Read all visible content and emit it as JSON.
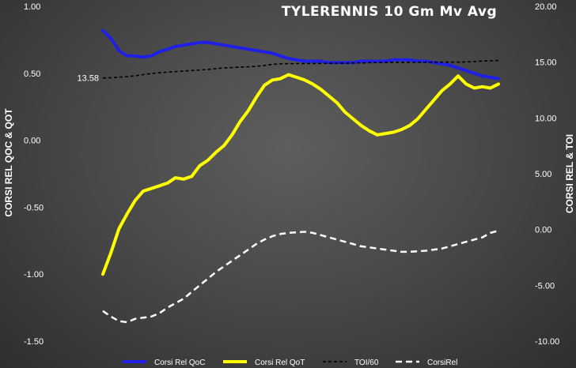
{
  "chart_data": {
    "type": "line",
    "title": "TYLERENNIS 10 Gm Mv Avg",
    "ylabel": "CORSI REL QOC & QOT",
    "y2label": "CORSI REL & TOI",
    "ylim": [
      -1.5,
      1.0
    ],
    "y2lim": [
      -10,
      20
    ],
    "yticks": [
      "1.00",
      "0.50",
      "0.00",
      "-0.50",
      "-1.00",
      "-1.50"
    ],
    "y2ticks": [
      "20.00",
      "15.00",
      "10.00",
      "5.00",
      "0.00",
      "-5.00",
      "-10.00"
    ],
    "grid": false,
    "legend_position": "bottom",
    "x": [
      1,
      2,
      3,
      4,
      5,
      6,
      7,
      8,
      9,
      10,
      11,
      12,
      13,
      14,
      15,
      16,
      17,
      18,
      19,
      20,
      21,
      22,
      23,
      24,
      25,
      26,
      27,
      28,
      29,
      30,
      31,
      32,
      33,
      34,
      35,
      36,
      37,
      38,
      39,
      40,
      41,
      42,
      43,
      44,
      45,
      46,
      47,
      48,
      49,
      50
    ],
    "series": [
      {
        "name": "Corsi Rel QoC",
        "axis": "left",
        "color": "#1f1fe6",
        "dash": "solid",
        "values": [
          0.82,
          0.76,
          0.67,
          0.63,
          0.63,
          0.62,
          0.63,
          0.66,
          0.68,
          0.7,
          0.71,
          0.72,
          0.73,
          0.73,
          0.72,
          0.71,
          0.7,
          0.69,
          0.68,
          0.67,
          0.66,
          0.65,
          0.63,
          0.61,
          0.6,
          0.59,
          0.59,
          0.59,
          0.58,
          0.58,
          0.58,
          0.58,
          0.59,
          0.59,
          0.59,
          0.59,
          0.6,
          0.6,
          0.6,
          0.59,
          0.59,
          0.58,
          0.57,
          0.56,
          0.54,
          0.52,
          0.5,
          0.48,
          0.47,
          0.46
        ]
      },
      {
        "name": "Corsi Rel QoT",
        "axis": "left",
        "color": "#ffff00",
        "dash": "solid",
        "values": [
          -1.0,
          -0.84,
          -0.66,
          -0.55,
          -0.45,
          -0.38,
          -0.36,
          -0.34,
          -0.32,
          -0.28,
          -0.29,
          -0.27,
          -0.19,
          -0.15,
          -0.09,
          -0.04,
          0.04,
          0.14,
          0.22,
          0.32,
          0.41,
          0.45,
          0.46,
          0.49,
          0.47,
          0.45,
          0.42,
          0.38,
          0.33,
          0.28,
          0.21,
          0.16,
          0.11,
          0.07,
          0.04,
          0.05,
          0.06,
          0.08,
          0.11,
          0.16,
          0.23,
          0.3,
          0.37,
          0.42,
          0.48,
          0.42,
          0.39,
          0.4,
          0.39,
          0.42
        ]
      },
      {
        "name": "TOI/60",
        "axis": "right",
        "color": "#000000",
        "dash": "short",
        "values": [
          13.58,
          13.6,
          13.65,
          13.7,
          13.78,
          13.88,
          13.98,
          14.05,
          14.1,
          14.15,
          14.2,
          14.25,
          14.3,
          14.35,
          14.42,
          14.48,
          14.52,
          14.55,
          14.58,
          14.62,
          14.7,
          14.8,
          14.85,
          14.86,
          14.87,
          14.88,
          14.88,
          14.88,
          14.89,
          14.9,
          14.9,
          14.92,
          14.93,
          14.95,
          14.96,
          14.97,
          14.98,
          14.98,
          14.98,
          14.99,
          14.99,
          15.0,
          15.0,
          15.0,
          15.0,
          15.02,
          15.05,
          15.1,
          15.12,
          15.15
        ]
      },
      {
        "name": "CorsiRel",
        "axis": "right",
        "color": "#ffffff",
        "dash": "long",
        "values": [
          -7.3,
          -7.8,
          -8.2,
          -8.3,
          -8.0,
          -7.9,
          -7.8,
          -7.5,
          -7.0,
          -6.6,
          -6.2,
          -5.6,
          -5.0,
          -4.4,
          -3.8,
          -3.3,
          -2.8,
          -2.3,
          -1.8,
          -1.3,
          -0.9,
          -0.6,
          -0.4,
          -0.3,
          -0.25,
          -0.2,
          -0.3,
          -0.5,
          -0.7,
          -0.9,
          -1.1,
          -1.3,
          -1.5,
          -1.6,
          -1.7,
          -1.8,
          -1.9,
          -2.0,
          -2.0,
          -1.95,
          -1.9,
          -1.8,
          -1.7,
          -1.5,
          -1.3,
          -1.1,
          -0.9,
          -0.7,
          -0.3,
          -0.1
        ]
      }
    ],
    "annotations": [
      {
        "series": "TOI/60",
        "index": 0,
        "text": "13.58"
      }
    ]
  }
}
